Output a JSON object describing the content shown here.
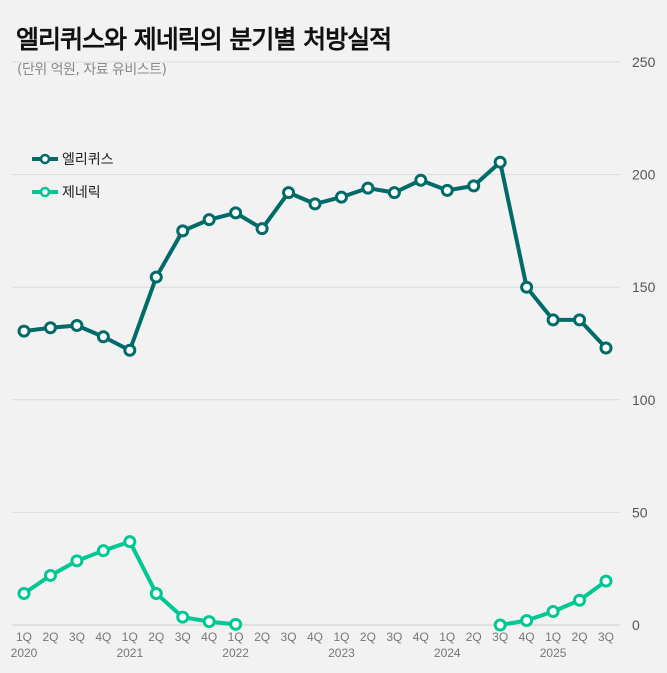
{
  "title": "엘리퀴스와 제네릭의 분기별 처방실적",
  "subtitle": "(단위 억원, 자료 유비스트)",
  "chart_data": {
    "type": "line",
    "title": "엘리퀴스와 제네릭의 분기별 처방실적",
    "subtitle": "(단위 억원, 자료 유비스트)",
    "xlabel": "",
    "ylabel": "억원",
    "ylim": [
      0,
      250
    ],
    "yticks": [
      0,
      50,
      100,
      150,
      200,
      250
    ],
    "grid": true,
    "legend_position": "top-left",
    "categories": [
      "1Q",
      "2Q",
      "3Q",
      "4Q",
      "1Q",
      "2Q",
      "3Q",
      "4Q",
      "1Q",
      "2Q",
      "3Q",
      "4Q",
      "1Q",
      "2Q",
      "3Q",
      "4Q",
      "1Q",
      "2Q",
      "3Q",
      "4Q",
      "1Q",
      "2Q",
      "3Q"
    ],
    "year_labels": [
      {
        "index": 0,
        "label": "2020"
      },
      {
        "index": 4,
        "label": "2021"
      },
      {
        "index": 8,
        "label": "2022"
      },
      {
        "index": 12,
        "label": "2023"
      },
      {
        "index": 16,
        "label": "2024"
      },
      {
        "index": 20,
        "label": "2025"
      }
    ],
    "series": [
      {
        "name": "엘리퀴스",
        "color": "#006b68",
        "values": [
          130.5,
          132,
          133,
          128,
          122,
          154.5,
          175,
          180,
          183,
          176,
          192,
          187,
          190,
          194,
          192,
          197.5,
          193,
          195,
          205.5,
          150,
          135.5,
          135.5,
          123
        ]
      },
      {
        "name": "제네릭",
        "color": "#00c893",
        "values": [
          14,
          22,
          28.5,
          33,
          37,
          14,
          3.5,
          1.5,
          0.3,
          null,
          null,
          null,
          null,
          null,
          null,
          null,
          null,
          null,
          0,
          2,
          6,
          11,
          19.5
        ]
      }
    ]
  }
}
